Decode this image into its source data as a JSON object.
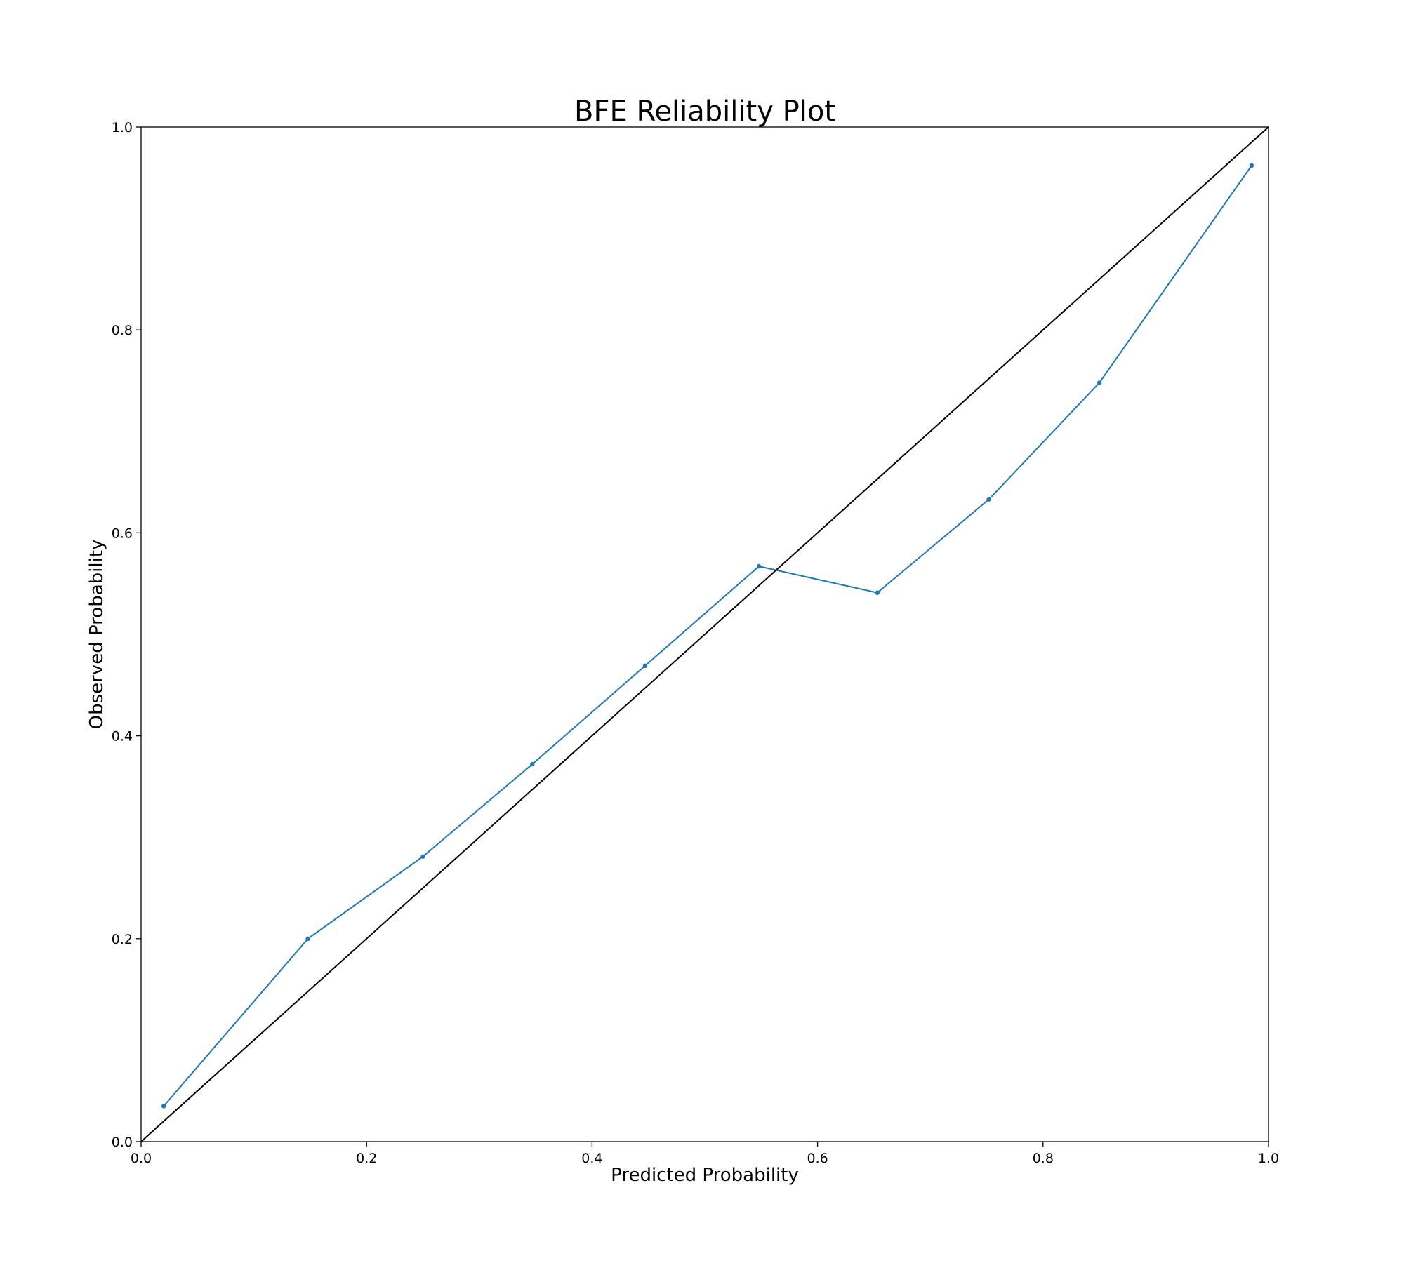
{
  "chart_data": {
    "type": "line",
    "title": "BFE Reliability Plot",
    "xlabel": "Predicted Probability",
    "ylabel": "Observed Probability",
    "xlim": [
      0,
      1
    ],
    "ylim": [
      0,
      1
    ],
    "xticks": [
      "0.0",
      "0.2",
      "0.4",
      "0.6",
      "0.8",
      "1.0"
    ],
    "yticks": [
      "0.0",
      "0.2",
      "0.4",
      "0.6",
      "0.8",
      "1.0"
    ],
    "grid": false,
    "series": [
      {
        "color": "#1f77b4",
        "marker": "point",
        "x": [
          0.02,
          0.148,
          0.25,
          0.347,
          0.447,
          0.548,
          0.653,
          0.752,
          0.85,
          0.985
        ],
        "y": [
          0.035,
          0.2,
          0.281,
          0.372,
          0.469,
          0.567,
          0.541,
          0.633,
          0.748,
          0.962
        ]
      },
      {
        "color": "#000000",
        "marker": "none",
        "x": [
          0,
          1
        ],
        "y": [
          0,
          1
        ]
      }
    ]
  }
}
